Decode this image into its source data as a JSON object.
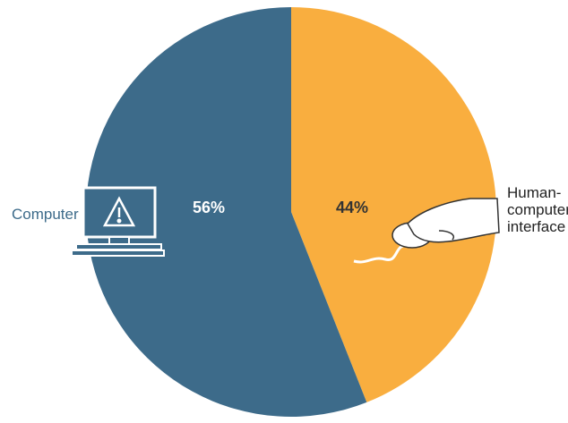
{
  "chart_data": {
    "type": "pie",
    "categories": [
      "Human-computer interface",
      "Computer"
    ],
    "values": [
      44,
      56
    ],
    "value_labels": [
      "44%",
      "56%"
    ],
    "colors": [
      "#f9ae3f",
      "#3d6b8a"
    ]
  }
}
